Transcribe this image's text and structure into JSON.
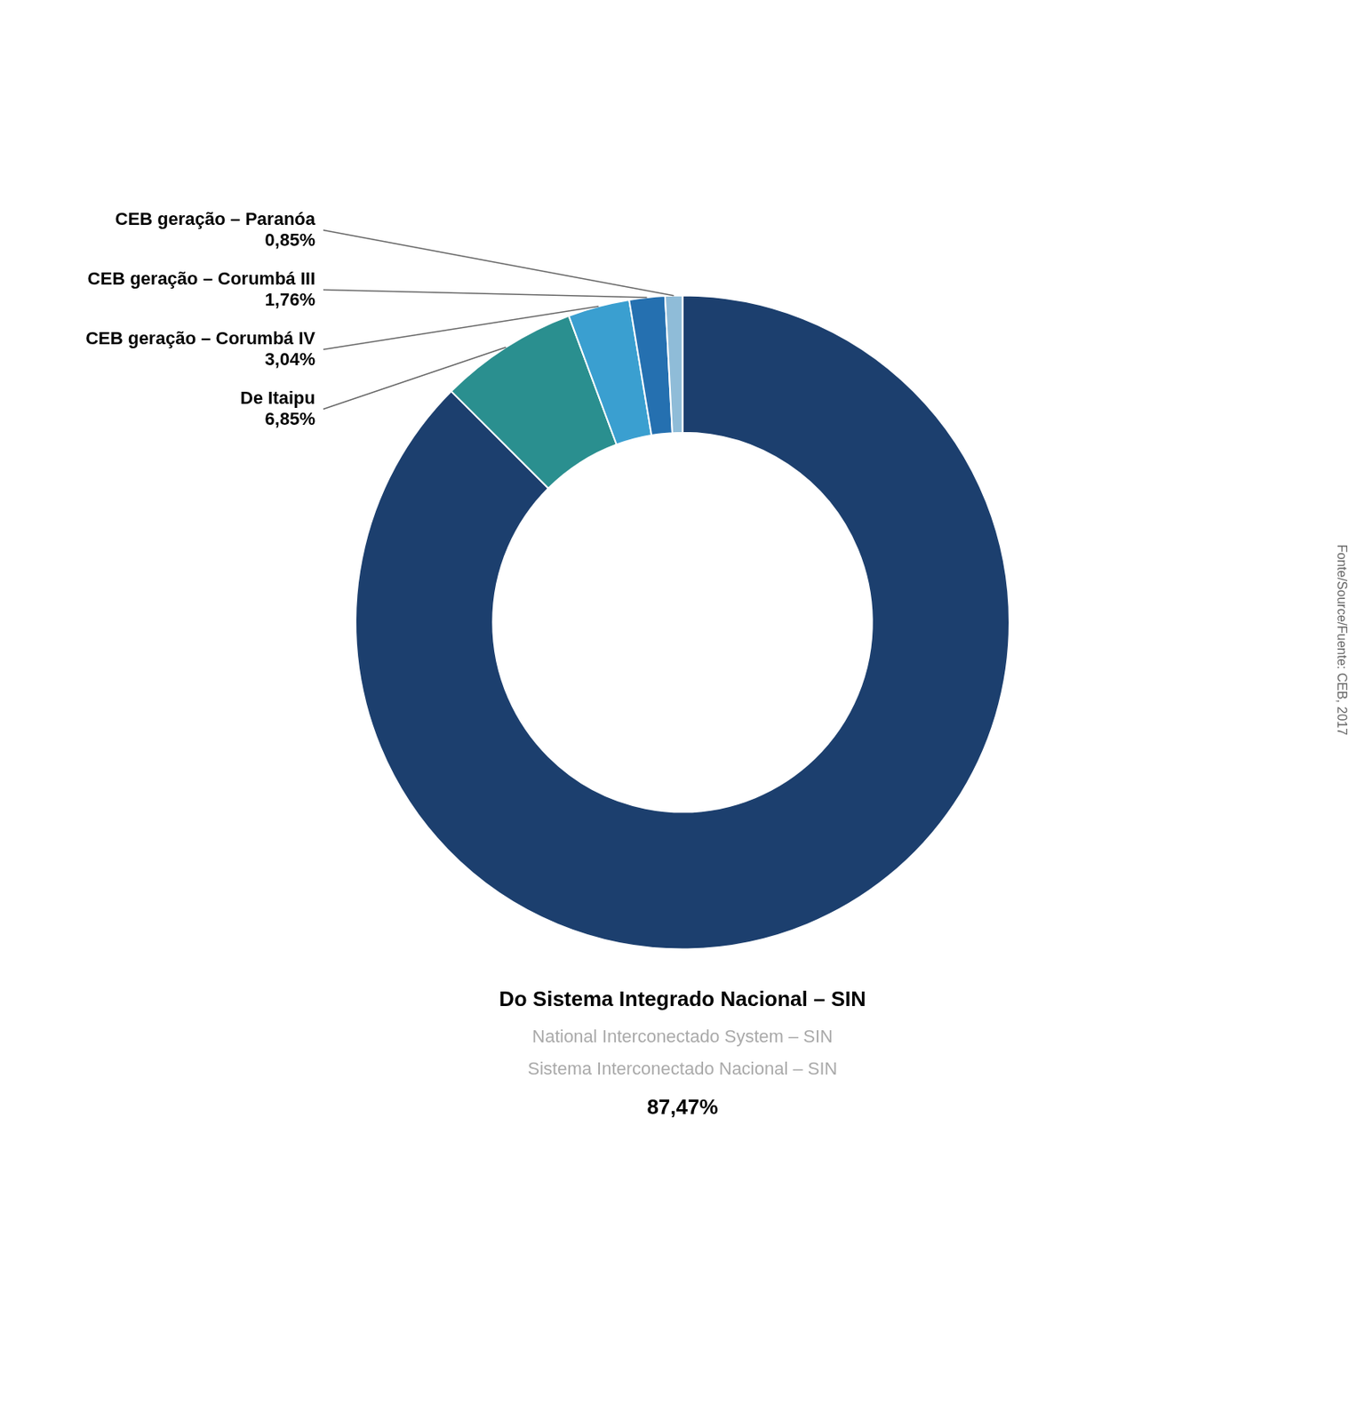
{
  "chart_data": {
    "type": "doughnut",
    "categories": [
      "Do Sistema Integrado Nacional – SIN",
      "De Itaipu",
      "CEB geração – Corumbá IV",
      "CEB geração – Corumbá III",
      "CEB geração – Paranóa"
    ],
    "values": [
      87.47,
      6.85,
      3.04,
      1.76,
      0.85
    ],
    "value_labels": [
      "87,47%",
      "6,85%",
      "3,04%",
      "1,76%",
      "0,85%"
    ],
    "colors": [
      "#1c3f6e",
      "#2a8f8f",
      "#3a9fd0",
      "#2570b0",
      "#8fbcd8"
    ],
    "data_labels": true,
    "annotations": [
      "National Interconectado System – SIN",
      "Sistema Interconectado Nacional – SIN"
    ],
    "source": "Fonte/Source/Fuente: CEB, 2017"
  }
}
